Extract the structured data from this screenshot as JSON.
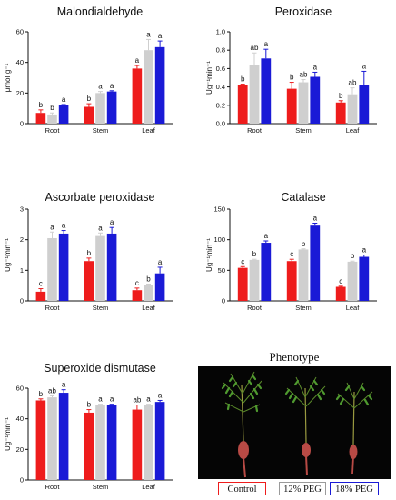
{
  "colors": {
    "control": "#ee1c1c",
    "peg12": "#cfcfcf",
    "peg18": "#1a1ad6"
  },
  "chart_data": [
    {
      "type": "bar",
      "title": "Malondialdehyde",
      "ylabel": "μmol·g⁻¹",
      "categories": [
        "Root",
        "Stem",
        "Leaf"
      ],
      "ylim": [
        0,
        60
      ],
      "yticks": [
        "0",
        "20",
        "40",
        "60"
      ],
      "series": [
        {
          "values": [
            7,
            11,
            36
          ],
          "errors": [
            2,
            2,
            2
          ]
        },
        {
          "values": [
            6,
            20,
            48
          ],
          "errors": [
            1,
            1,
            7
          ]
        },
        {
          "values": [
            12,
            21,
            50
          ],
          "errors": [
            0.5,
            0.5,
            4
          ]
        }
      ],
      "letters": [
        [
          "b",
          "b",
          "a"
        ],
        [
          "b",
          "a",
          "a"
        ],
        [
          "a",
          "a",
          "a"
        ]
      ]
    },
    {
      "type": "bar",
      "title": "Peroxidase",
      "ylabel": "Ug⁻¹min⁻¹",
      "categories": [
        "Root",
        "Stem",
        "Leaf"
      ],
      "ylim": [
        0,
        1.0
      ],
      "yticks": [
        "0.0",
        "0.2",
        "0.4",
        "0.6",
        "0.8",
        "1.0"
      ],
      "series": [
        {
          "values": [
            0.42,
            0.38,
            0.23
          ],
          "errors": [
            0.01,
            0.07,
            0.02
          ]
        },
        {
          "values": [
            0.64,
            0.45,
            0.32
          ],
          "errors": [
            0.13,
            0.03,
            0.07
          ]
        },
        {
          "values": [
            0.71,
            0.51,
            0.42
          ],
          "errors": [
            0.1,
            0.05,
            0.15
          ]
        }
      ],
      "letters": [
        [
          "b",
          "b",
          "b"
        ],
        [
          "ab",
          "ab",
          "ab"
        ],
        [
          "a",
          "a",
          "a"
        ]
      ]
    },
    {
      "type": "bar",
      "title": "Ascorbate peroxidase",
      "ylabel": "Ug⁻¹min⁻¹",
      "categories": [
        "Root",
        "Stem",
        "Leaf"
      ],
      "ylim": [
        0,
        3
      ],
      "yticks": [
        "0",
        "1",
        "2",
        "3"
      ],
      "series": [
        {
          "values": [
            0.3,
            1.3,
            0.35
          ],
          "errors": [
            0.1,
            0.1,
            0.07
          ]
        },
        {
          "values": [
            2.05,
            2.12,
            0.52
          ],
          "errors": [
            0.2,
            0.1,
            0.03
          ]
        },
        {
          "values": [
            2.2,
            2.2,
            0.9
          ],
          "errors": [
            0.1,
            0.2,
            0.2
          ]
        }
      ],
      "letters": [
        [
          "c",
          "b",
          "c"
        ],
        [
          "a",
          "a",
          "b"
        ],
        [
          "a",
          "a",
          "a"
        ]
      ]
    },
    {
      "type": "bar",
      "title": "Catalase",
      "ylabel": "Ug⁻¹min⁻¹",
      "categories": [
        "Root",
        "Stem",
        "Leaf"
      ],
      "ylim": [
        0,
        150
      ],
      "yticks": [
        "0",
        "50",
        "100",
        "150"
      ],
      "series": [
        {
          "values": [
            54,
            65,
            23
          ],
          "errors": [
            2,
            3,
            1
          ]
        },
        {
          "values": [
            67,
            84,
            64
          ],
          "errors": [
            1,
            1,
            1
          ]
        },
        {
          "values": [
            95,
            123,
            72
          ],
          "errors": [
            3,
            4,
            3
          ]
        }
      ],
      "letters": [
        [
          "c",
          "c",
          "c"
        ],
        [
          "b",
          "b",
          "b"
        ],
        [
          "a",
          "a",
          "a"
        ]
      ]
    },
    {
      "type": "bar",
      "title": "Superoxide dismutase",
      "ylabel": "Ug⁻¹min⁻¹",
      "categories": [
        "Root",
        "Stem",
        "Leaf"
      ],
      "ylim": [
        0,
        60
      ],
      "yticks": [
        "0",
        "20",
        "40",
        "60"
      ],
      "series": [
        {
          "values": [
            52,
            44,
            46
          ],
          "errors": [
            1,
            2,
            3
          ]
        },
        {
          "values": [
            54,
            49,
            49
          ],
          "errors": [
            1,
            0.5,
            0.5
          ]
        },
        {
          "values": [
            57,
            49,
            51
          ],
          "errors": [
            2,
            0.5,
            1
          ]
        }
      ],
      "letters": [
        [
          "b",
          "b",
          "ab"
        ],
        [
          "ab",
          "a",
          "a"
        ],
        [
          "a",
          "a",
          "a"
        ]
      ]
    }
  ],
  "phenotype": {
    "title": "Phenotype",
    "legend": [
      "Control",
      "12% PEG",
      "18% PEG"
    ]
  }
}
